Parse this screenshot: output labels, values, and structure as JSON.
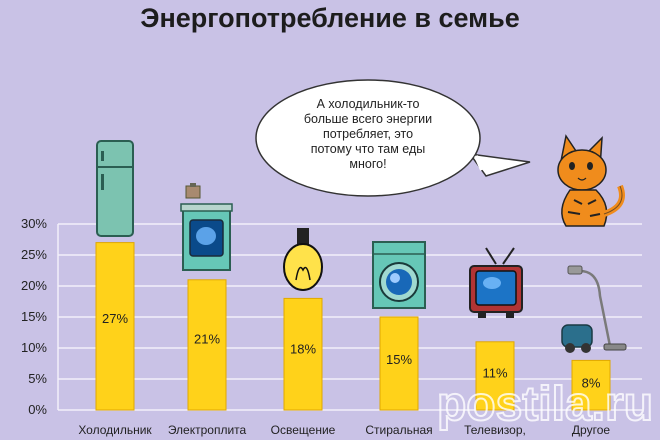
{
  "chart_data": {
    "type": "bar",
    "title": "Энергопотребление в семье",
    "categories": [
      "Холодильник",
      "Электроплита",
      "Освещение",
      "Стиральная",
      "Телевизор,",
      "Другое"
    ],
    "values": [
      27,
      21,
      18,
      15,
      11,
      8
    ],
    "value_labels": [
      "27%",
      "21%",
      "18%",
      "15%",
      "11%",
      "8%"
    ],
    "ylim": [
      0,
      30
    ],
    "yticks": [
      "0%",
      "5%",
      "10%",
      "15%",
      "20%",
      "25%",
      "30%"
    ],
    "grid": true,
    "colors": {
      "bar": "#ffd21a",
      "bar_edge": "#e0a800",
      "background": "#c9c2e6",
      "grid": "#f3f0fa"
    },
    "icons": [
      "fridge-icon",
      "stove-icon",
      "light-bulb-icon",
      "washing-machine-icon",
      "tv-icon",
      "vacuum-cleaner-icon"
    ]
  },
  "speech_bubble": {
    "lines": [
      "А холодильник-то",
      "больше всего энергии",
      "потребляет, это",
      "потому что там еды",
      "много!"
    ]
  },
  "decorations": {
    "cat": "cat-illustration",
    "watermark": "postila.ru"
  }
}
